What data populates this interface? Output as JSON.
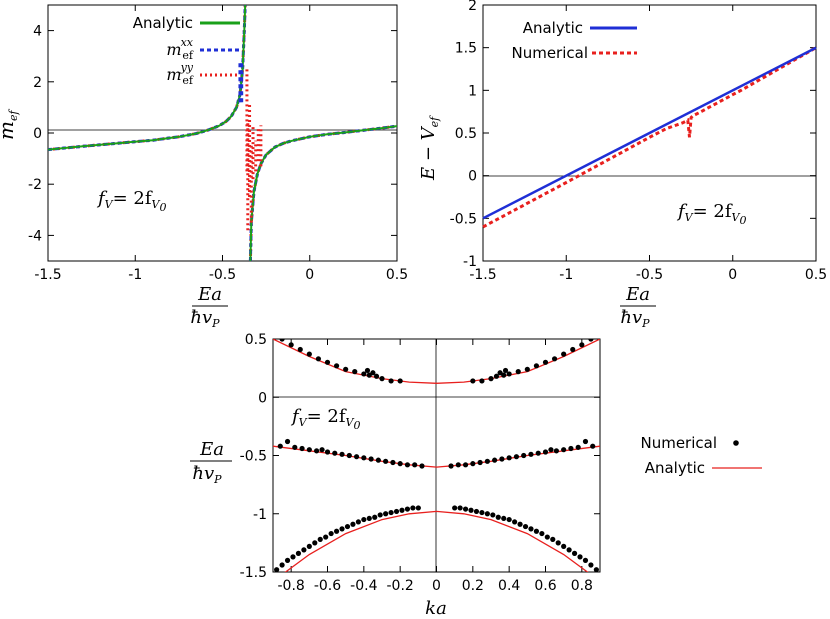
{
  "chart_data": [
    {
      "type": "line",
      "panel": "top-left",
      "xlim": [
        -1.5,
        0.5
      ],
      "ylim": [
        -5,
        5
      ],
      "x_ticks": [
        "-1.5",
        "-1",
        "-0.5",
        "0",
        "0.5"
      ],
      "y_ticks": [
        "4",
        "2",
        "0",
        "-2",
        "-4"
      ],
      "ylabel_main": "m",
      "ylabel_sub": "ef",
      "xlabel_num": "Ea",
      "xlabel_den": "ħv",
      "xlabel_den_sub": "P",
      "annotation": "f",
      "annotation_sub": "V",
      "annotation_eq": "= 2f",
      "annotation_sub2": "V",
      "annotation_sub3": "0",
      "legend_position": "top-left",
      "colors": {
        "analytic": "#1aa01a",
        "mxx": "#1f2fd6",
        "myy": "#e8201e"
      },
      "legend": [
        {
          "key": "analytic",
          "label": "Analytic"
        },
        {
          "key": "mxx",
          "label": "m",
          "sub": "ef",
          "sup": "xx"
        },
        {
          "key": "myy",
          "label": "m",
          "sub": "ef",
          "sup": "yy"
        }
      ],
      "series": [
        {
          "name": "Analytic",
          "x": [
            -1.5,
            -1.3,
            -1.1,
            -0.9,
            -0.75,
            -0.65,
            -0.58,
            -0.52,
            -0.48,
            -0.45,
            -0.42,
            -0.4,
            -0.385,
            -0.375,
            -0.37
          ],
          "y": [
            -0.65,
            -0.52,
            -0.4,
            -0.28,
            -0.15,
            -0.02,
            0.12,
            0.28,
            0.45,
            0.65,
            1.0,
            1.5,
            2.5,
            4.0,
            5.0
          ]
        },
        {
          "name": "Analytic",
          "x": [
            -0.34,
            -0.335,
            -0.32,
            -0.3,
            -0.28,
            -0.25,
            -0.2,
            -0.15,
            -0.1,
            0,
            0.1,
            0.2,
            0.3,
            0.4,
            0.5
          ],
          "y": [
            -5.0,
            -3.5,
            -2.3,
            -1.6,
            -1.2,
            -0.85,
            -0.55,
            -0.4,
            -0.3,
            -0.15,
            -0.05,
            0.02,
            0.1,
            0.18,
            0.27
          ]
        }
      ]
    },
    {
      "type": "line",
      "panel": "top-right",
      "xlim": [
        -1.5,
        0.5
      ],
      "ylim": [
        -1,
        2
      ],
      "x_ticks": [
        "-1.5",
        "-1",
        "-0.5",
        "0",
        "0.5"
      ],
      "y_ticks": [
        "2",
        "1.5",
        "1",
        "0.5",
        "0",
        "-0.5",
        "-1"
      ],
      "ylabel_main": "E − V",
      "ylabel_sub": "ef",
      "xlabel_num": "Ea",
      "xlabel_den": "ħv",
      "xlabel_den_sub": "P",
      "annotation": "f",
      "annotation_sub": "V",
      "annotation_eq": "= 2f",
      "annotation_sub2": "V",
      "annotation_sub3": "0",
      "legend_position": "top-left",
      "colors": {
        "analytic": "#1f2fd6",
        "numerical": "#e8201e"
      },
      "legend": [
        {
          "key": "analytic",
          "label": "Analytic"
        },
        {
          "key": "numerical",
          "label": "Numerical"
        }
      ],
      "series": [
        {
          "name": "Analytic",
          "x": [
            -1.5,
            0.5
          ],
          "y": [
            -0.5,
            1.5
          ]
        },
        {
          "name": "Numerical",
          "x": [
            -1.5,
            -1.0,
            -0.5,
            -0.4,
            -0.3,
            -0.27,
            -0.26,
            -0.25,
            -0.24,
            -0.2,
            0,
            0.05,
            0.5
          ],
          "y": [
            -0.6,
            -0.08,
            0.45,
            0.55,
            0.62,
            0.65,
            0.45,
            0.68,
            0.7,
            0.74,
            0.95,
            1.0,
            1.5
          ]
        }
      ]
    },
    {
      "type": "scatter",
      "panel": "bottom",
      "xlim": [
        -0.9,
        0.9
      ],
      "ylim": [
        -1.5,
        0.5
      ],
      "x_ticks": [
        "-0.8",
        "-0.6",
        "-0.4",
        "-0.2",
        "0",
        "0.2",
        "0.4",
        "0.6",
        "0.8"
      ],
      "y_ticks": [
        "0.5",
        "0",
        "-0.5",
        "-1",
        "-1.5"
      ],
      "xlabel": "ka",
      "ylabel_num": "Ea",
      "ylabel_den": "ħv",
      "ylabel_den_sub": "P",
      "annotation": "f",
      "annotation_sub": "V",
      "annotation_eq": "= 2f",
      "annotation_sub2": "V",
      "annotation_sub3": "0",
      "legend_position": "right",
      "colors": {
        "analytic": "#e8201e",
        "numerical": "#000000"
      },
      "legend": [
        {
          "key": "numerical",
          "label": "Numerical"
        },
        {
          "key": "analytic",
          "label": "Analytic"
        }
      ],
      "analytic_bands": [
        {
          "x": [
            -0.9,
            -0.7,
            -0.5,
            -0.3,
            -0.15,
            0,
            0.15,
            0.3,
            0.5,
            0.7,
            0.9
          ],
          "y": [
            0.5,
            0.35,
            0.22,
            0.16,
            0.13,
            0.12,
            0.13,
            0.16,
            0.22,
            0.35,
            0.5
          ]
        },
        {
          "x": [
            -0.9,
            -0.7,
            -0.5,
            -0.3,
            -0.15,
            0,
            0.15,
            0.3,
            0.5,
            0.7,
            0.9
          ],
          "y": [
            -0.42,
            -0.46,
            -0.5,
            -0.55,
            -0.58,
            -0.6,
            -0.58,
            -0.55,
            -0.5,
            -0.46,
            -0.42
          ]
        },
        {
          "x": [
            -0.9,
            -0.7,
            -0.5,
            -0.3,
            -0.15,
            0,
            0.15,
            0.3,
            0.5,
            0.7,
            0.9
          ],
          "y": [
            -1.58,
            -1.35,
            -1.17,
            -1.05,
            -1.0,
            -0.98,
            -1.0,
            -1.05,
            -1.17,
            -1.35,
            -1.58
          ]
        }
      ],
      "numerical_points": {
        "band1": {
          "x": [
            -0.85,
            -0.8,
            -0.75,
            -0.7,
            -0.65,
            -0.6,
            -0.55,
            -0.5,
            -0.45,
            -0.4,
            -0.38,
            -0.37,
            -0.35,
            -0.33,
            -0.3,
            -0.25,
            -0.2,
            0.2,
            0.25,
            0.3,
            0.33,
            0.35,
            0.37,
            0.38,
            0.4,
            0.45,
            0.5,
            0.55,
            0.6,
            0.65,
            0.7,
            0.75,
            0.8,
            0.85
          ],
          "y": [
            0.5,
            0.45,
            0.41,
            0.37,
            0.33,
            0.3,
            0.27,
            0.24,
            0.22,
            0.2,
            0.23,
            0.19,
            0.21,
            0.18,
            0.16,
            0.14,
            0.14,
            0.14,
            0.14,
            0.16,
            0.18,
            0.21,
            0.19,
            0.23,
            0.2,
            0.22,
            0.24,
            0.27,
            0.3,
            0.33,
            0.37,
            0.41,
            0.45,
            0.5
          ]
        },
        "band2": {
          "x": [
            -0.86,
            -0.82,
            -0.78,
            -0.74,
            -0.7,
            -0.66,
            -0.63,
            -0.6,
            -0.56,
            -0.52,
            -0.48,
            -0.44,
            -0.4,
            -0.36,
            -0.32,
            -0.28,
            -0.24,
            -0.2,
            -0.16,
            -0.12,
            -0.08,
            0.08,
            0.12,
            0.16,
            0.2,
            0.24,
            0.28,
            0.32,
            0.36,
            0.4,
            0.44,
            0.48,
            0.52,
            0.56,
            0.6,
            0.63,
            0.66,
            0.7,
            0.74,
            0.78,
            0.82,
            0.86
          ],
          "y": [
            -0.42,
            -0.38,
            -0.43,
            -0.44,
            -0.45,
            -0.46,
            -0.45,
            -0.47,
            -0.48,
            -0.49,
            -0.5,
            -0.51,
            -0.52,
            -0.53,
            -0.54,
            -0.55,
            -0.56,
            -0.57,
            -0.58,
            -0.58,
            -0.59,
            -0.59,
            -0.58,
            -0.58,
            -0.57,
            -0.56,
            -0.55,
            -0.54,
            -0.53,
            -0.52,
            -0.51,
            -0.5,
            -0.49,
            -0.48,
            -0.47,
            -0.45,
            -0.46,
            -0.45,
            -0.44,
            -0.43,
            -0.38,
            -0.42
          ]
        },
        "band3": {
          "x": [
            -0.88,
            -0.85,
            -0.82,
            -0.79,
            -0.76,
            -0.73,
            -0.7,
            -0.67,
            -0.64,
            -0.61,
            -0.58,
            -0.55,
            -0.52,
            -0.49,
            -0.46,
            -0.43,
            -0.4,
            -0.37,
            -0.34,
            -0.31,
            -0.28,
            -0.25,
            -0.22,
            -0.19,
            -0.16,
            -0.13,
            -0.1,
            0.1,
            0.13,
            0.16,
            0.19,
            0.22,
            0.25,
            0.28,
            0.31,
            0.34,
            0.37,
            0.4,
            0.43,
            0.46,
            0.49,
            0.52,
            0.55,
            0.58,
            0.61,
            0.64,
            0.67,
            0.7,
            0.73,
            0.76,
            0.79,
            0.82,
            0.85,
            0.88
          ],
          "y": [
            -1.48,
            -1.44,
            -1.4,
            -1.37,
            -1.34,
            -1.31,
            -1.28,
            -1.25,
            -1.22,
            -1.2,
            -1.17,
            -1.15,
            -1.13,
            -1.11,
            -1.09,
            -1.07,
            -1.05,
            -1.04,
            -1.03,
            -1.01,
            -1.0,
            -0.99,
            -0.98,
            -0.97,
            -0.96,
            -0.95,
            -0.95,
            -0.95,
            -0.95,
            -0.96,
            -0.97,
            -0.98,
            -0.99,
            -1.0,
            -1.01,
            -1.03,
            -1.04,
            -1.05,
            -1.07,
            -1.09,
            -1.11,
            -1.13,
            -1.15,
            -1.17,
            -1.2,
            -1.22,
            -1.25,
            -1.28,
            -1.31,
            -1.34,
            -1.37,
            -1.4,
            -1.44,
            -1.48
          ]
        }
      }
    }
  ]
}
